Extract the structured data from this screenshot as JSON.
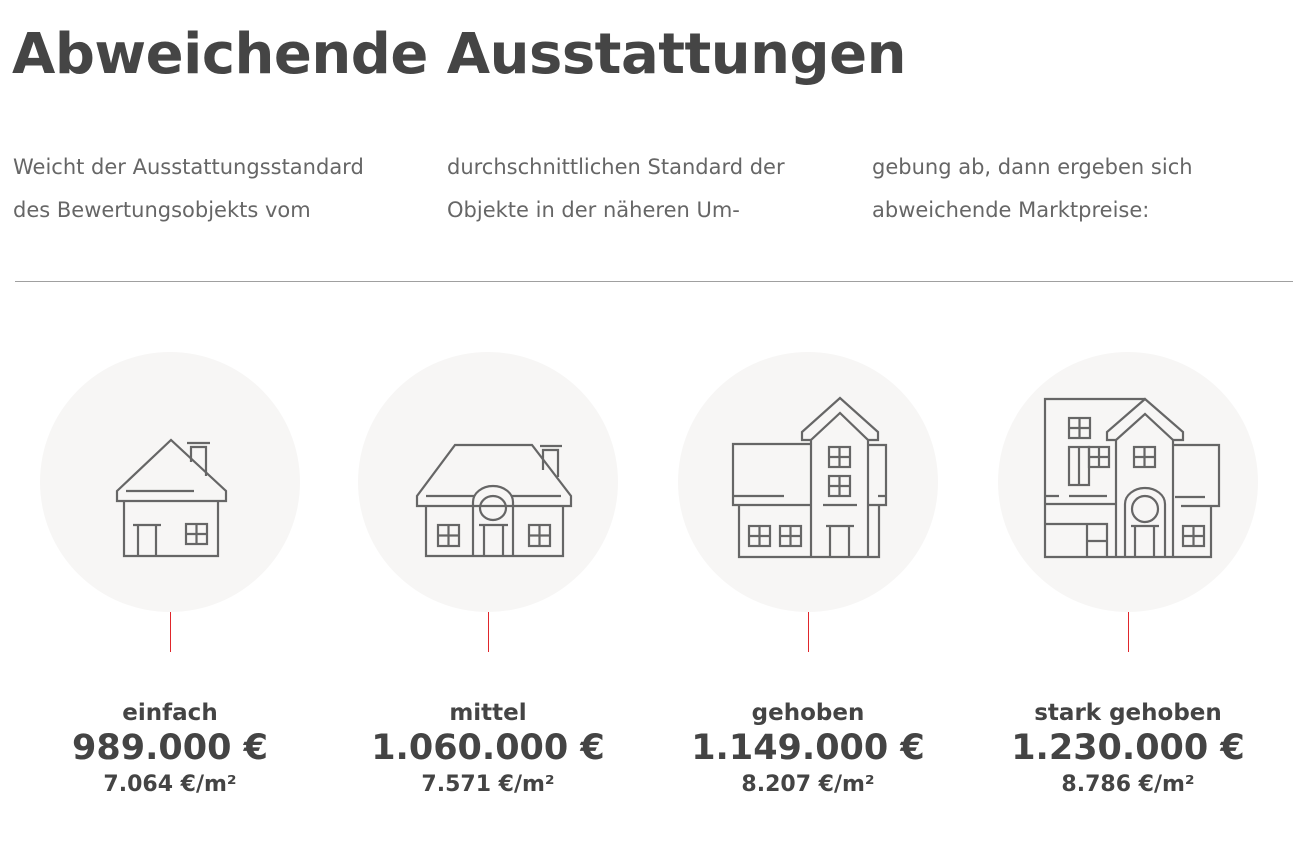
{
  "title": "Abweichende Ausstattungen",
  "intro": {
    "col1": [
      "Weicht der Ausstattungsstandard",
      "des Bewertungsobjekts vom"
    ],
    "col2": [
      "durchschnittlichen Standard der",
      "Objekte in der näheren Um-"
    ],
    "col3": [
      "gebung ab, dann ergeben sich",
      "abweichende Marktpreise:"
    ]
  },
  "accent_color": "#e0262b",
  "items": [
    {
      "label": "einfach",
      "price": "989.000 €",
      "per_sqm": "7.064 €/m²",
      "icon": "simple-house-icon"
    },
    {
      "label": "mittel",
      "price": "1.060.000 €",
      "per_sqm": "7.571 €/m²",
      "icon": "medium-house-icon"
    },
    {
      "label": "gehoben",
      "price": "1.149.000 €",
      "per_sqm": "8.207 €/m²",
      "icon": "upscale-house-icon"
    },
    {
      "label": "stark gehoben",
      "price": "1.230.000 €",
      "per_sqm": "8.786 €/m²",
      "icon": "luxury-house-icon"
    }
  ]
}
